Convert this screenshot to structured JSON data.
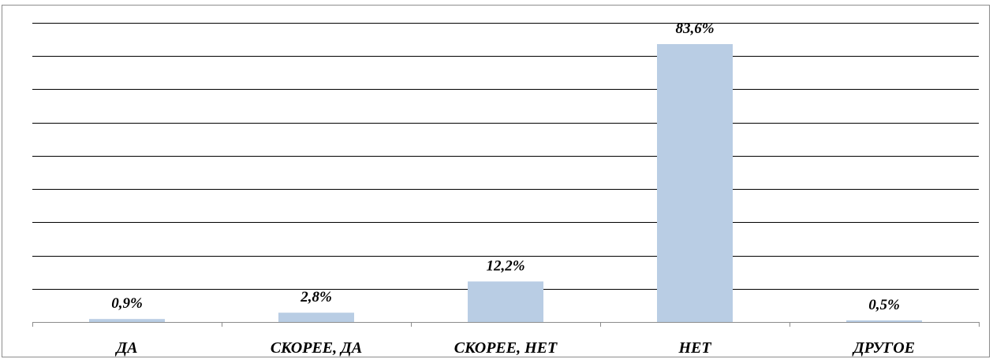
{
  "chart_data": {
    "type": "bar",
    "categories": [
      "ДА",
      "СКОРЕЕ, ДА",
      "СКОРЕЕ, НЕТ",
      "НЕТ",
      "ДРУГОЕ"
    ],
    "values": [
      0.9,
      2.8,
      12.2,
      83.6,
      0.5
    ],
    "data_labels": [
      "0,9%",
      "2,8%",
      "12,2%",
      "83,6%",
      "0,5%"
    ],
    "ylim": [
      0,
      90
    ],
    "grid": true,
    "legend": "none",
    "colors": {
      "bar": "#b9cde4",
      "grid": "#000000",
      "axis": "#8c8c8c"
    }
  }
}
